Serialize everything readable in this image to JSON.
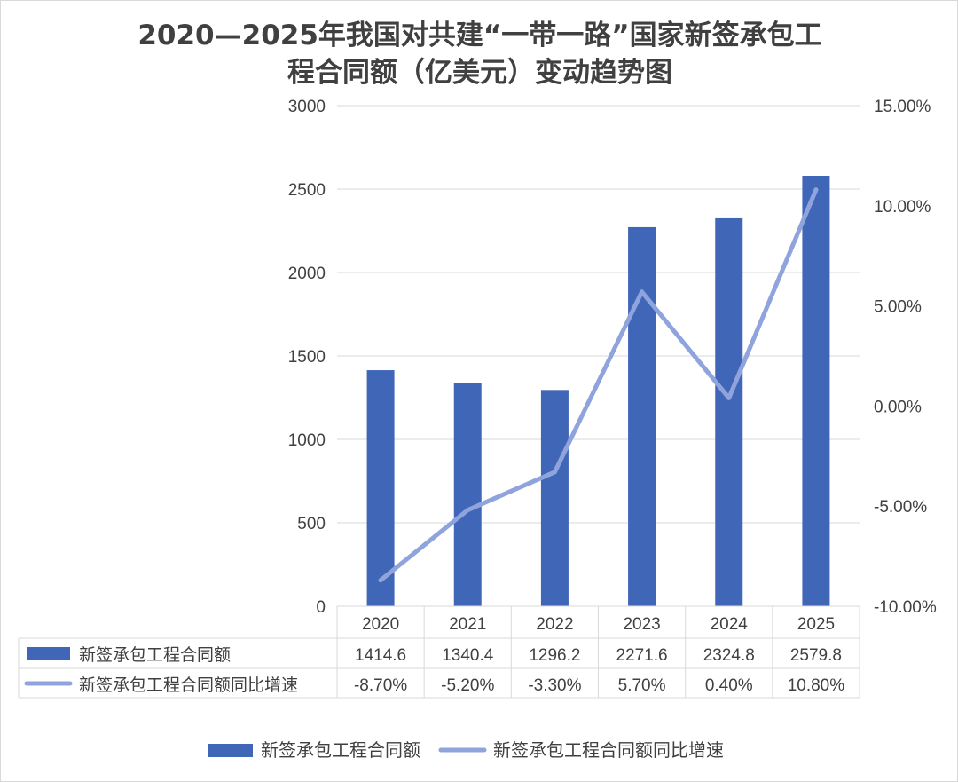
{
  "chart_data": {
    "type": "bar",
    "title_line1": "2020—2025年我国对共建“一带一路”国家新签承包工",
    "title_line2": "程合同额（亿美元）变动趋势图",
    "categories": [
      "2020",
      "2021",
      "2022",
      "2023",
      "2024",
      "2025"
    ],
    "series": [
      {
        "name": "新签承包工程合同额",
        "kind": "bar",
        "axis": "left",
        "values": [
          1414.6,
          1340.4,
          1296.2,
          2271.6,
          2324.8,
          2579.8
        ],
        "labels": [
          "1414.6",
          "1340.4",
          "1296.2",
          "2271.6",
          "2324.8",
          "2579.8"
        ],
        "color": "#4066b8"
      },
      {
        "name": "新签承包工程合同额同比增速",
        "kind": "line",
        "axis": "right",
        "values": [
          -8.7,
          -5.2,
          -3.3,
          5.7,
          0.4,
          10.8
        ],
        "labels": [
          "-8.70%",
          "-5.20%",
          "-3.30%",
          "5.70%",
          "0.40%",
          "10.80%"
        ],
        "color": "#8fa4dc"
      }
    ],
    "y_left": {
      "min": 0,
      "max": 3000,
      "ticks": [
        "0",
        "500",
        "1000",
        "1500",
        "2000",
        "2500",
        "3000"
      ]
    },
    "y_right": {
      "min": -10,
      "max": 15,
      "ticks": [
        "-10.00%",
        "-5.00%",
        "0.00%",
        "5.00%",
        "10.00%",
        "15.00%"
      ]
    },
    "grid": true,
    "data_table": true,
    "legend_position": "bottom"
  }
}
